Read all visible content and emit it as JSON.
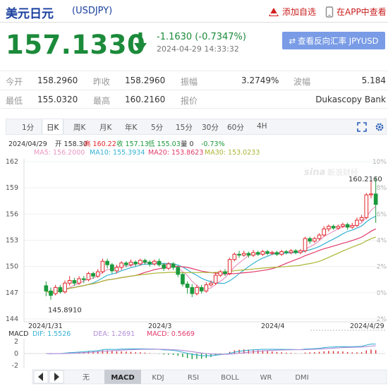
{
  "header": {
    "title": "美元日元",
    "symbol": "(USDJPY)",
    "add_watchlist": "添加自选",
    "app_view": "在APP中查看"
  },
  "quote": {
    "price": "157.1330",
    "change": "-1.1630 (-0.7347%)",
    "timestamp": "2024-04-29 14:33:32",
    "reverse_rate_button": "查看反向汇率 JPYUSD"
  },
  "stats": {
    "row1": [
      {
        "label": "今开",
        "value": "158.2960"
      },
      {
        "label": "昨收",
        "value": "158.2960"
      },
      {
        "label": "振幅",
        "value": "3.2749%"
      },
      {
        "label": "波幅",
        "value": "5.184"
      }
    ],
    "row2": [
      {
        "label": "最低",
        "value": "155.0320"
      },
      {
        "label": "最高",
        "value": "160.2160"
      },
      {
        "label": "报价",
        "value": "Dukascopy Bank"
      }
    ]
  },
  "period_tabs": [
    "1分",
    "日K",
    "周K",
    "月K",
    "年K",
    "5分",
    "15分",
    "30分",
    "60分",
    "4H"
  ],
  "active_period": "日K",
  "tool_icons": [
    "fullscreen-icon",
    "settings-icon"
  ],
  "indicator_tabs": [
    "无",
    "MACD",
    "KDJ",
    "RSI",
    "BOLL",
    "WR",
    "DMI"
  ],
  "active_indicator": "MACD",
  "colors": {
    "up": "#e0262b",
    "down": "#1b9a3c",
    "accent_blue": "#1a3f9e",
    "ma5": "#e996c2",
    "ma10": "#35b1d3",
    "ma20": "#e23a6b",
    "ma30": "#aab532",
    "button_bg": "#7a9ce6"
  },
  "chart_data": {
    "type": "candlestick",
    "info_line": {
      "date": "2024/04/29",
      "open": "开 158.30",
      "high": "高 160.22",
      "close": "收 157.13",
      "low": "低 155.03",
      "volume": "量 0",
      "change": "-0.73%"
    },
    "ma_legend": [
      {
        "name": "MA5",
        "value": "156.2000"
      },
      {
        "name": "MA10",
        "value": "155.3934"
      },
      {
        "name": "MA20",
        "value": "153.8623"
      },
      {
        "name": "MA30",
        "value": "153.0233"
      }
    ],
    "y_ticks": [
      "162",
      "159",
      "156",
      "153",
      "150",
      "147",
      "144"
    ],
    "pct_ticks": [
      "10%",
      "8%",
      "6%",
      "4%",
      "2%",
      "0%",
      "2%"
    ],
    "x_labels": [
      "2024/1/31",
      "2024/3",
      "2024/4",
      "2024/4/29"
    ],
    "ylim": [
      144,
      162
    ],
    "high_label": "160.2160",
    "low_label": "145.8910",
    "candles": [
      [
        147.8,
        147.2,
        148.3,
        146.6
      ],
      [
        147.2,
        146.7,
        147.6,
        146.2
      ],
      [
        146.9,
        147.6,
        147.9,
        146.7
      ],
      [
        147.6,
        147.1,
        147.9,
        146.9
      ],
      [
        147.1,
        148.1,
        148.4,
        146.9
      ],
      [
        148.1,
        148.4,
        148.9,
        147.8
      ],
      [
        148.4,
        148.1,
        148.7,
        147.8
      ],
      [
        148.1,
        148.6,
        148.9,
        147.9
      ],
      [
        148.6,
        148.5,
        148.9,
        148.1
      ],
      [
        148.5,
        149.2,
        149.4,
        148.3
      ],
      [
        149.2,
        148.9,
        149.4,
        148.6
      ],
      [
        148.9,
        149.4,
        149.7,
        148.7
      ],
      [
        149.4,
        150.6,
        150.9,
        149.2
      ],
      [
        150.6,
        150.2,
        150.9,
        149.8
      ],
      [
        150.2,
        149.5,
        150.4,
        149.2
      ],
      [
        149.5,
        149.9,
        150.2,
        149.2
      ],
      [
        149.9,
        150.4,
        150.6,
        149.6
      ],
      [
        150.4,
        150.2,
        150.6,
        149.9
      ],
      [
        150.2,
        150.5,
        150.8,
        150.0
      ],
      [
        150.5,
        150.3,
        150.7,
        150.0
      ],
      [
        150.3,
        150.7,
        150.9,
        150.1
      ],
      [
        150.7,
        150.5,
        150.9,
        150.2
      ],
      [
        150.5,
        150.3,
        150.7,
        150.0
      ],
      [
        150.3,
        150.6,
        150.8,
        150.1
      ],
      [
        150.6,
        150.2,
        150.9,
        150.0
      ],
      [
        150.2,
        149.8,
        150.4,
        149.5
      ],
      [
        149.8,
        150.3,
        150.5,
        149.6
      ],
      [
        150.3,
        149.9,
        150.5,
        149.6
      ],
      [
        149.9,
        149.1,
        150.1,
        148.8
      ],
      [
        149.1,
        148.0,
        149.3,
        147.7
      ],
      [
        148.0,
        147.6,
        148.3,
        146.9
      ],
      [
        147.6,
        146.9,
        148.0,
        146.5
      ],
      [
        146.9,
        147.6,
        147.9,
        146.7
      ],
      [
        147.6,
        147.2,
        147.9,
        146.9
      ],
      [
        147.2,
        147.9,
        148.2,
        147.0
      ],
      [
        147.9,
        148.1,
        148.4,
        147.7
      ],
      [
        148.1,
        149.0,
        149.3,
        147.9
      ],
      [
        149.0,
        149.4,
        149.6,
        148.8
      ],
      [
        149.4,
        149.2,
        149.7,
        148.9
      ],
      [
        149.2,
        150.8,
        151.0,
        149.0
      ],
      [
        150.8,
        151.4,
        151.6,
        150.6
      ],
      [
        151.4,
        151.3,
        151.8,
        151.0
      ],
      [
        151.3,
        151.5,
        151.8,
        151.1
      ],
      [
        151.5,
        151.3,
        151.7,
        151.0
      ],
      [
        151.3,
        151.6,
        151.9,
        151.1
      ],
      [
        151.6,
        151.4,
        151.8,
        151.2
      ],
      [
        151.4,
        151.7,
        151.9,
        151.2
      ],
      [
        151.7,
        151.5,
        151.9,
        151.3
      ],
      [
        151.5,
        151.6,
        151.8,
        151.3
      ],
      [
        151.6,
        151.4,
        151.8,
        151.2
      ],
      [
        151.4,
        151.7,
        151.9,
        151.2
      ],
      [
        151.7,
        151.6,
        151.9,
        151.4
      ],
      [
        151.6,
        151.8,
        152.0,
        151.4
      ],
      [
        151.8,
        151.6,
        152.0,
        151.4
      ],
      [
        151.6,
        151.8,
        152.0,
        151.4
      ],
      [
        151.8,
        153.2,
        153.4,
        151.6
      ],
      [
        153.2,
        152.9,
        153.4,
        152.6
      ],
      [
        152.9,
        153.2,
        153.4,
        152.7
      ],
      [
        153.2,
        153.6,
        153.8,
        153.0
      ],
      [
        153.6,
        154.3,
        154.6,
        153.4
      ],
      [
        154.3,
        154.6,
        154.8,
        154.0
      ],
      [
        154.6,
        154.4,
        154.8,
        154.2
      ],
      [
        154.4,
        154.6,
        154.8,
        154.2
      ],
      [
        154.6,
        154.8,
        155.0,
        154.4
      ],
      [
        154.8,
        154.5,
        155.0,
        154.2
      ],
      [
        154.5,
        154.7,
        155.0,
        154.3
      ],
      [
        154.7,
        155.3,
        155.6,
        154.5
      ],
      [
        155.3,
        155.6,
        155.9,
        155.1
      ],
      [
        155.6,
        158.2,
        158.4,
        155.4
      ],
      [
        158.2,
        158.3,
        160.2,
        157.8
      ],
      [
        158.3,
        157.1,
        160.2,
        155.0
      ]
    ],
    "macd_legend": {
      "title": "MACD",
      "dif": "DIF: 1.5526",
      "dea": "DEA: 1.2691",
      "macd": "MACD: 0.5669"
    },
    "macd_ticks": [
      "2",
      "0",
      "-2"
    ],
    "macd_ylim": [
      -2.5,
      2.5
    ]
  }
}
